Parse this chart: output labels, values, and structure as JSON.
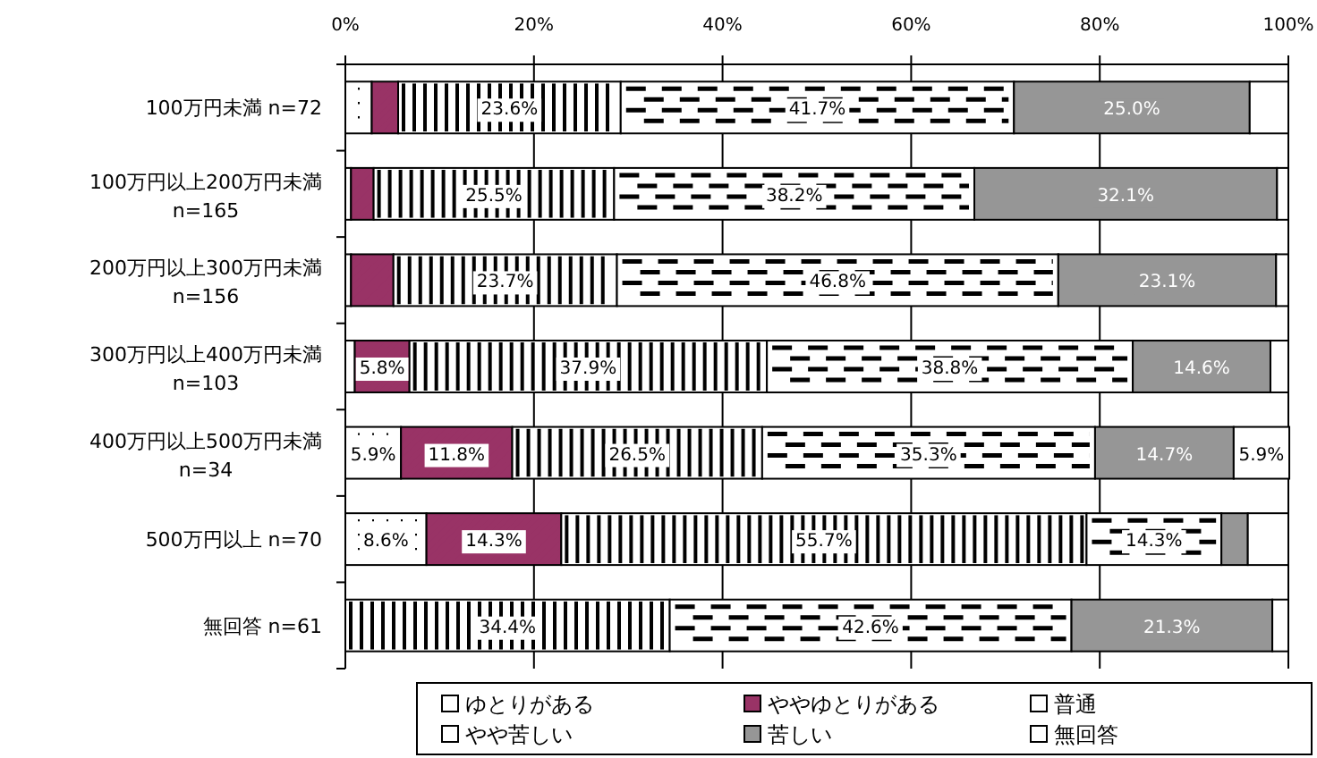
{
  "chart_data": {
    "type": "bar",
    "orientation": "horizontal",
    "stacked": true,
    "categories": [
      "100万円未満 n=72",
      "100万円以上200万円未満 n=165",
      "200万円以上300万円未満 n=156",
      "300万円以上400万円未満 n=103",
      "400万円以上500万円未満 n=34",
      "500万円以上 n=70",
      "無回答 n=61"
    ],
    "series": [
      {
        "name": "ゆとりがある",
        "color": "#ffffff",
        "values": [
          2.8,
          0.6,
          0.6,
          1.0,
          5.9,
          8.6,
          0
        ],
        "value_labels": [
          null,
          null,
          null,
          null,
          "5.9%",
          "8.6%",
          null
        ]
      },
      {
        "name": "ややゆとりがある",
        "color": "#993366",
        "values": [
          2.8,
          2.4,
          4.5,
          5.8,
          11.8,
          14.3,
          0
        ],
        "value_labels": [
          null,
          null,
          null,
          "5.8%",
          "11.8%",
          "14.3%",
          null
        ]
      },
      {
        "name": "普通",
        "color": "#ffffff",
        "values": [
          23.6,
          25.5,
          23.7,
          37.9,
          26.5,
          55.7,
          34.4
        ],
        "value_labels": [
          "23.6%",
          "25.5%",
          "23.7%",
          "37.9%",
          "26.5%",
          "55.7%",
          "34.4%"
        ]
      },
      {
        "name": "やや苦しい",
        "color": "#ffffff",
        "values": [
          41.7,
          38.2,
          46.8,
          38.8,
          35.3,
          14.3,
          42.6
        ],
        "value_labels": [
          "41.7%",
          "38.2%",
          "46.8%",
          "38.8%",
          "35.3%",
          "14.3%",
          "42.6%"
        ]
      },
      {
        "name": "苦しい",
        "color": "#969696",
        "values": [
          25.0,
          32.1,
          23.1,
          14.6,
          14.7,
          2.8,
          21.3
        ],
        "value_labels": [
          "25.0%",
          "32.1%",
          "23.1%",
          "14.6%",
          "14.7%",
          null,
          "21.3%"
        ]
      },
      {
        "name": "無回答",
        "color": "#ffffff",
        "values": [
          4.1,
          1.2,
          1.3,
          1.9,
          5.9,
          4.3,
          1.7
        ],
        "value_labels": [
          null,
          null,
          null,
          null,
          "5.9%",
          null,
          null
        ]
      }
    ],
    "xlim": [
      0,
      100
    ],
    "xticks": [
      {
        "value": 0,
        "label": "0%"
      },
      {
        "value": 20,
        "label": "20%"
      },
      {
        "value": 40,
        "label": "40%"
      },
      {
        "value": 60,
        "label": "60%"
      },
      {
        "value": 80,
        "label": "80%"
      },
      {
        "value": 100,
        "label": "100%"
      }
    ],
    "grid": "x",
    "legend": "bottom"
  }
}
